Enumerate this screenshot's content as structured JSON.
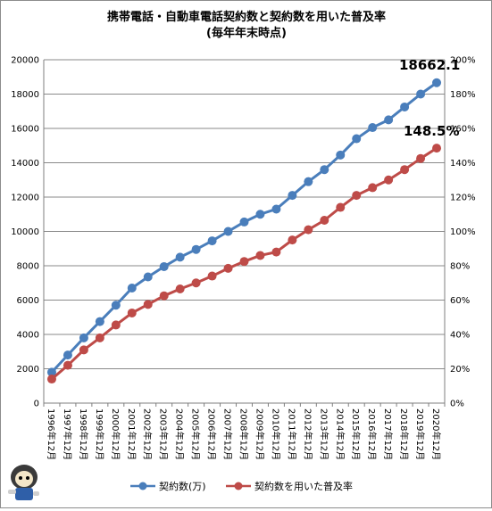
{
  "chart_data": {
    "type": "line",
    "title": "携帯電話・自動車電話契約数と契約数を用いた普及率",
    "subtitle": "(毎年年末時点)",
    "categories": [
      "1996年12月",
      "1997年12月",
      "1998年12月",
      "1999年12月",
      "2000年12月",
      "2001年12月",
      "2002年12月",
      "2003年12月",
      "2004年12月",
      "2005年12月",
      "2006年12月",
      "2007年12月",
      "2008年12月",
      "2009年12月",
      "2010年12月",
      "2011年12月",
      "2012年12月",
      "2013年12月",
      "2014年12月",
      "2015年12月",
      "2016年12月",
      "2017年12月",
      "2018年12月",
      "2019年12月",
      "2020年12月"
    ],
    "y_left": {
      "min": 0,
      "max": 20000,
      "step": 2000,
      "ticks": [
        "0",
        "2000",
        "4000",
        "6000",
        "8000",
        "10000",
        "12000",
        "14000",
        "16000",
        "18000",
        "20000"
      ]
    },
    "y_right": {
      "min": 0,
      "max": 2.0,
      "step": 0.2,
      "ticks": [
        "0%",
        "20%",
        "40%",
        "60%",
        "80%",
        "100%",
        "120%",
        "140%",
        "160%",
        "180%",
        "200%"
      ]
    },
    "series": [
      {
        "name": "契約数(万)",
        "axis": "left",
        "color": "#4a7ebb",
        "values": [
          1800,
          2800,
          3800,
          4750,
          5700,
          6700,
          7350,
          7950,
          8500,
          8950,
          9450,
          10000,
          10550,
          11000,
          11300,
          12100,
          12900,
          13600,
          14450,
          15400,
          16050,
          16500,
          17250,
          18000,
          18662.1
        ]
      },
      {
        "name": "契約数を用いた普及率",
        "axis": "right",
        "color": "#be4b48",
        "values": [
          0.14,
          0.22,
          0.31,
          0.38,
          0.455,
          0.525,
          0.575,
          0.625,
          0.665,
          0.7,
          0.74,
          0.785,
          0.825,
          0.86,
          0.88,
          0.95,
          1.01,
          1.065,
          1.14,
          1.21,
          1.255,
          1.3,
          1.36,
          1.425,
          1.485
        ]
      }
    ],
    "callouts": {
      "last_count": "18662.1",
      "last_rate": "148.5%"
    },
    "grid": true,
    "legend_position": "bottom"
  }
}
